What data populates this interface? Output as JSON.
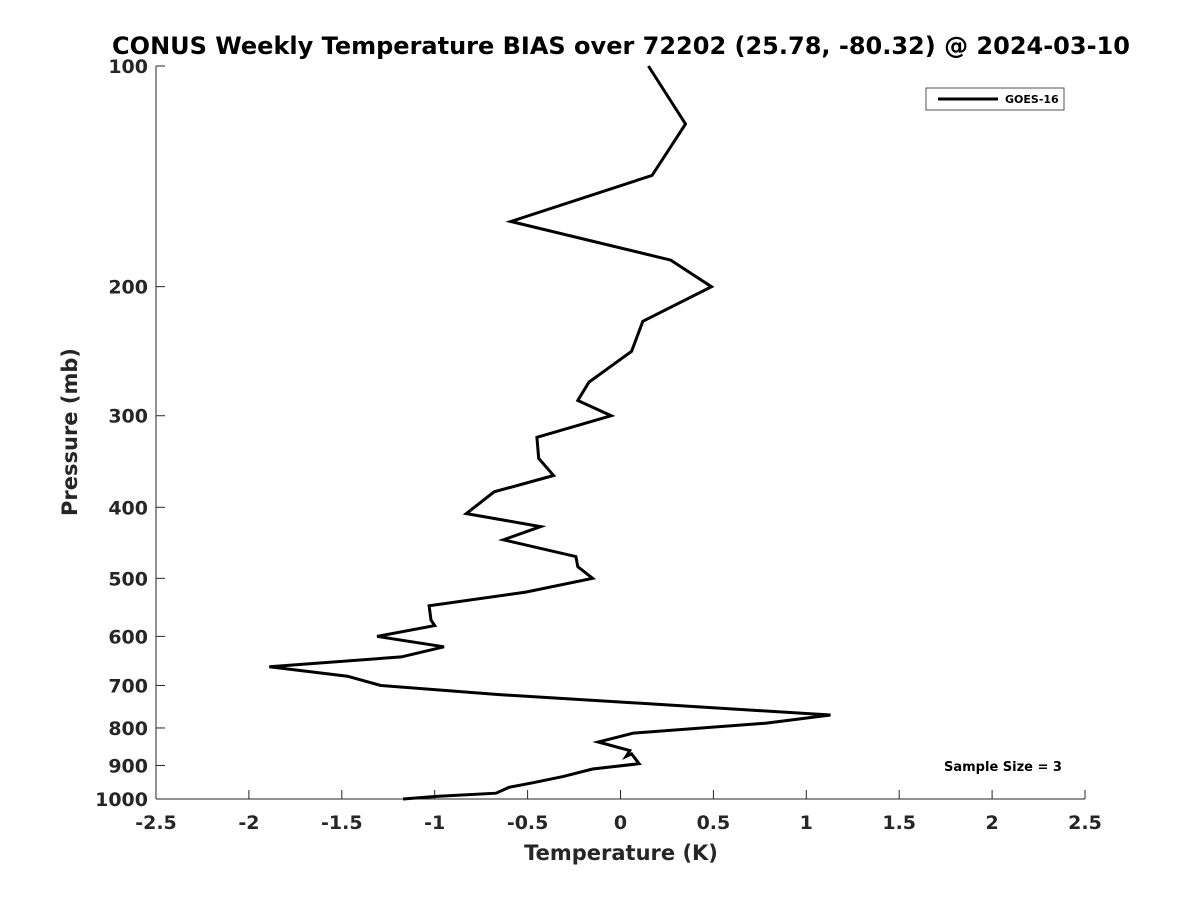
{
  "chart_data": {
    "type": "line",
    "title": "CONUS Weekly Temperature BIAS over 72202 (25.78, -80.32) @ 2024-03-10",
    "xlabel": "Temperature (K)",
    "ylabel": "Pressure (mb)",
    "xlim": [
      -2.5,
      2.5
    ],
    "ylim": [
      100,
      1000
    ],
    "y_scale": "log",
    "y_reversed": true,
    "x_ticks": [
      -2.5,
      -2,
      -1.5,
      -1,
      -0.5,
      0,
      0.5,
      1,
      1.5,
      2,
      2.5
    ],
    "x_tick_labels": [
      "-2.5",
      "-2",
      "-1.5",
      "-1",
      "-0.5",
      "0",
      "0.5",
      "1",
      "1.5",
      "2",
      "2.5"
    ],
    "y_ticks": [
      100,
      200,
      300,
      400,
      500,
      600,
      700,
      800,
      900,
      1000
    ],
    "y_tick_labels": [
      "100",
      "200",
      "300",
      "400",
      "500",
      "600",
      "700",
      "800",
      "900",
      "1000"
    ],
    "grid": false,
    "legend_position": "top-right",
    "series": [
      {
        "name": "GOES-16",
        "color": "#000000",
        "points": [
          [
            0.15,
            100
          ],
          [
            0.35,
            120
          ],
          [
            0.17,
            141
          ],
          [
            -0.59,
            163
          ],
          [
            0.27,
            184
          ],
          [
            0.49,
            200
          ],
          [
            0.12,
            223
          ],
          [
            0.06,
            245
          ],
          [
            -0.17,
            270
          ],
          [
            -0.23,
            286
          ],
          [
            -0.05,
            300
          ],
          [
            -0.45,
            321
          ],
          [
            -0.44,
            343
          ],
          [
            -0.36,
            362
          ],
          [
            -0.68,
            381
          ],
          [
            -0.83,
            408
          ],
          [
            -0.43,
            425
          ],
          [
            -0.63,
            443
          ],
          [
            -0.24,
            467
          ],
          [
            -0.23,
            482
          ],
          [
            -0.15,
            500
          ],
          [
            -0.51,
            522
          ],
          [
            -1.03,
            545
          ],
          [
            -1.02,
            570
          ],
          [
            -1.0,
            580
          ],
          [
            -1.31,
            600
          ],
          [
            -0.95,
            620
          ],
          [
            -1.18,
            640
          ],
          [
            -1.89,
            660
          ],
          [
            -1.47,
            680
          ],
          [
            -1.29,
            700
          ],
          [
            -0.67,
            720
          ],
          [
            0.4,
            748
          ],
          [
            1.13,
            768
          ],
          [
            0.78,
            788
          ],
          [
            0.07,
            813
          ],
          [
            -0.12,
            836
          ],
          [
            0.05,
            859
          ],
          [
            0.03,
            875
          ],
          [
            0.06,
            868
          ],
          [
            0.1,
            895
          ],
          [
            -0.15,
            910
          ],
          [
            -0.31,
            932
          ],
          [
            -0.47,
            950
          ],
          [
            -0.6,
            964
          ],
          [
            -0.67,
            982
          ],
          [
            -0.99,
            992
          ],
          [
            -1.17,
            1000
          ]
        ]
      }
    ],
    "annotations": [
      "Sample Size = 3"
    ]
  }
}
